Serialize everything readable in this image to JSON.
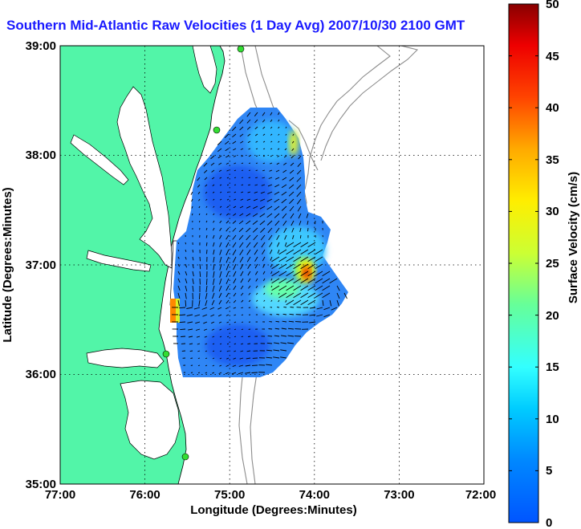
{
  "title": "Southern Mid-Atlantic Raw Velocities (1 Day Avg) 2007/10/30 2100 GMT",
  "axes": {
    "xlabel": "Longitude (Degrees:Minutes)",
    "ylabel": "Latitude (Degrees:Minutes)",
    "x_ticks": [
      "77:00",
      "76:00",
      "75:00",
      "74:00",
      "73:00",
      "72:00"
    ],
    "y_ticks": [
      "39:00",
      "38:00",
      "37:00",
      "36:00",
      "35:00"
    ]
  },
  "colorbar": {
    "label": "Surface Velocity (cm/s)",
    "ticks": [
      "50",
      "45",
      "40",
      "35",
      "30",
      "25",
      "20",
      "15",
      "10",
      "5",
      "0"
    ],
    "range": [
      0,
      50
    ],
    "colormap": "jet"
  },
  "colors": {
    "land": "#52f5a8",
    "ocean": "#ffffff",
    "title": "#1a1aff",
    "stations": "#33dd33",
    "bathymetry": "#8c8c8c"
  },
  "chart_data": {
    "type": "heatmap",
    "title": "Southern Mid-Atlantic Raw Velocities (1 Day Avg) 2007/10/30 2100 GMT",
    "xlabel": "Longitude (Degrees:Minutes)",
    "ylabel": "Latitude (Degrees:Minutes)",
    "xlim": [
      "77:00 W",
      "72:00 W"
    ],
    "ylim": [
      "35:00 N",
      "39:00 N"
    ],
    "grid": true,
    "value_label": "Surface Velocity (cm/s)",
    "value_range": [
      0,
      50
    ],
    "typical_speed_range_cm_s": [
      3,
      12
    ],
    "hotspots": [
      {
        "lon": "74:05 W",
        "lat": "36:55 N",
        "speed_cm_s": 45
      },
      {
        "lon": "74:15 W",
        "lat": "36:40 N",
        "speed_cm_s": 25
      },
      {
        "lon": "74:15 W",
        "lat": "37:55 N",
        "speed_cm_s": 22
      },
      {
        "lon": "75:35 W",
        "lat": "36:30 N",
        "speed_cm_s": 35
      }
    ],
    "stations": [
      {
        "lon": "75:07 W",
        "lat": "38:56 N"
      },
      {
        "lon": "75:08 W",
        "lat": "38:12 N"
      },
      {
        "lon": "75:43 W",
        "lat": "36:10 N"
      },
      {
        "lon": "75:30 W",
        "lat": "35:14 N"
      }
    ]
  }
}
